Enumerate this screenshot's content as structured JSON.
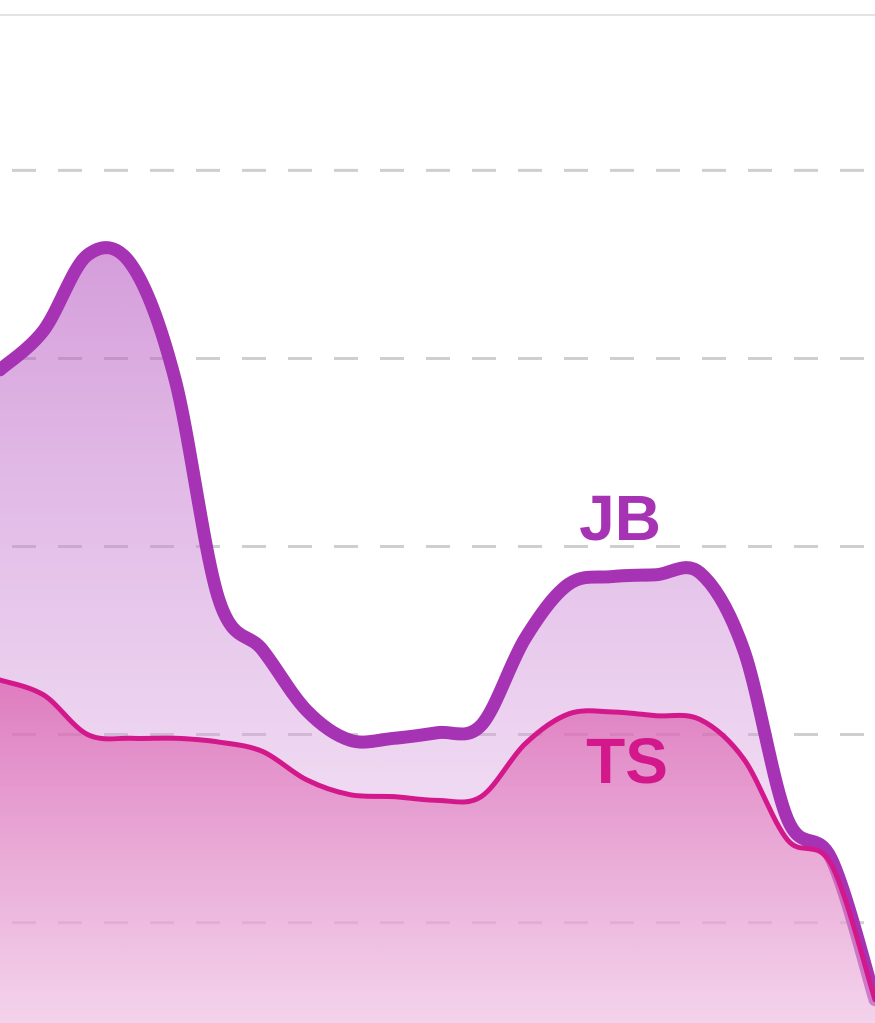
{
  "chart_data": {
    "type": "area",
    "categories": [
      null,
      null,
      null,
      null,
      null,
      null,
      null,
      null,
      null,
      null,
      null,
      null,
      null,
      null,
      null,
      null,
      null,
      null,
      null,
      null,
      null
    ],
    "series": [
      {
        "name": "JB",
        "color": "#a533b3",
        "values": [
          3.94,
          4.15,
          4.55,
          4.5,
          3.89,
          2.72,
          2.45,
          2.13,
          1.97,
          1.98,
          2.01,
          2.05,
          2.51,
          2.8,
          2.84,
          2.85,
          2.86,
          2.45,
          1.55,
          1.34,
          0.59
        ]
      },
      {
        "name": "TS",
        "color": "#d3188c",
        "values": [
          2.29,
          2.21,
          2.0,
          1.98,
          1.98,
          1.96,
          1.91,
          1.76,
          1.68,
          1.67,
          1.65,
          1.67,
          1.95,
          2.11,
          2.12,
          2.1,
          2.08,
          1.87,
          1.44,
          1.31,
          0.59
        ]
      }
    ],
    "ylim": [
      0.5,
      5.8
    ],
    "yticks": [
      1,
      2,
      3,
      4,
      5
    ],
    "grid": true
  }
}
